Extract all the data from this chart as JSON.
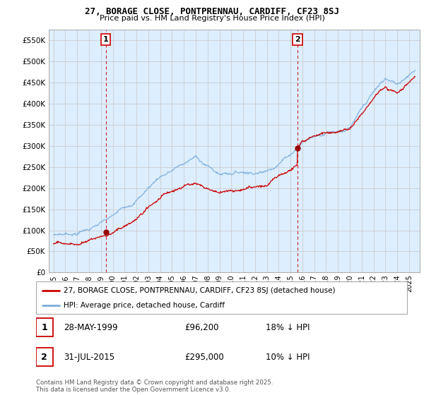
{
  "title_line1": "27, BORAGE CLOSE, PONTPRENNAU, CARDIFF, CF23 8SJ",
  "title_line2": "Price paid vs. HM Land Registry's House Price Index (HPI)",
  "ylabel_ticks": [
    "£0",
    "£50K",
    "£100K",
    "£150K",
    "£200K",
    "£250K",
    "£300K",
    "£350K",
    "£400K",
    "£450K",
    "£500K",
    "£550K"
  ],
  "ytick_values": [
    0,
    50000,
    100000,
    150000,
    200000,
    250000,
    300000,
    350000,
    400000,
    450000,
    500000,
    550000
  ],
  "legend_line1": "27, BORAGE CLOSE, PONTPRENNAU, CARDIFF, CF23 8SJ (detached house)",
  "legend_line2": "HPI: Average price, detached house, Cardiff",
  "annotation1_date": "28-MAY-1999",
  "annotation1_price": "£96,200",
  "annotation1_hpi": "18% ↓ HPI",
  "annotation2_date": "31-JUL-2015",
  "annotation2_price": "£295,000",
  "annotation2_hpi": "10% ↓ HPI",
  "copyright_text": "Contains HM Land Registry data © Crown copyright and database right 2025.\nThis data is licensed under the Open Government Licence v3.0.",
  "line_color_red": "#cc0000",
  "line_color_blue": "#7aaddb",
  "grid_color": "#cccccc",
  "plot_bg_color": "#ddeeff",
  "background_color": "#ffffff",
  "vline_color": "#cc0000",
  "marker1_year": 1999.41,
  "marker2_year": 2015.58,
  "sale1_price": 96200,
  "sale2_price": 295000,
  "xmin": 1995,
  "xmax": 2025,
  "ymin": 0,
  "ymax": 575000
}
